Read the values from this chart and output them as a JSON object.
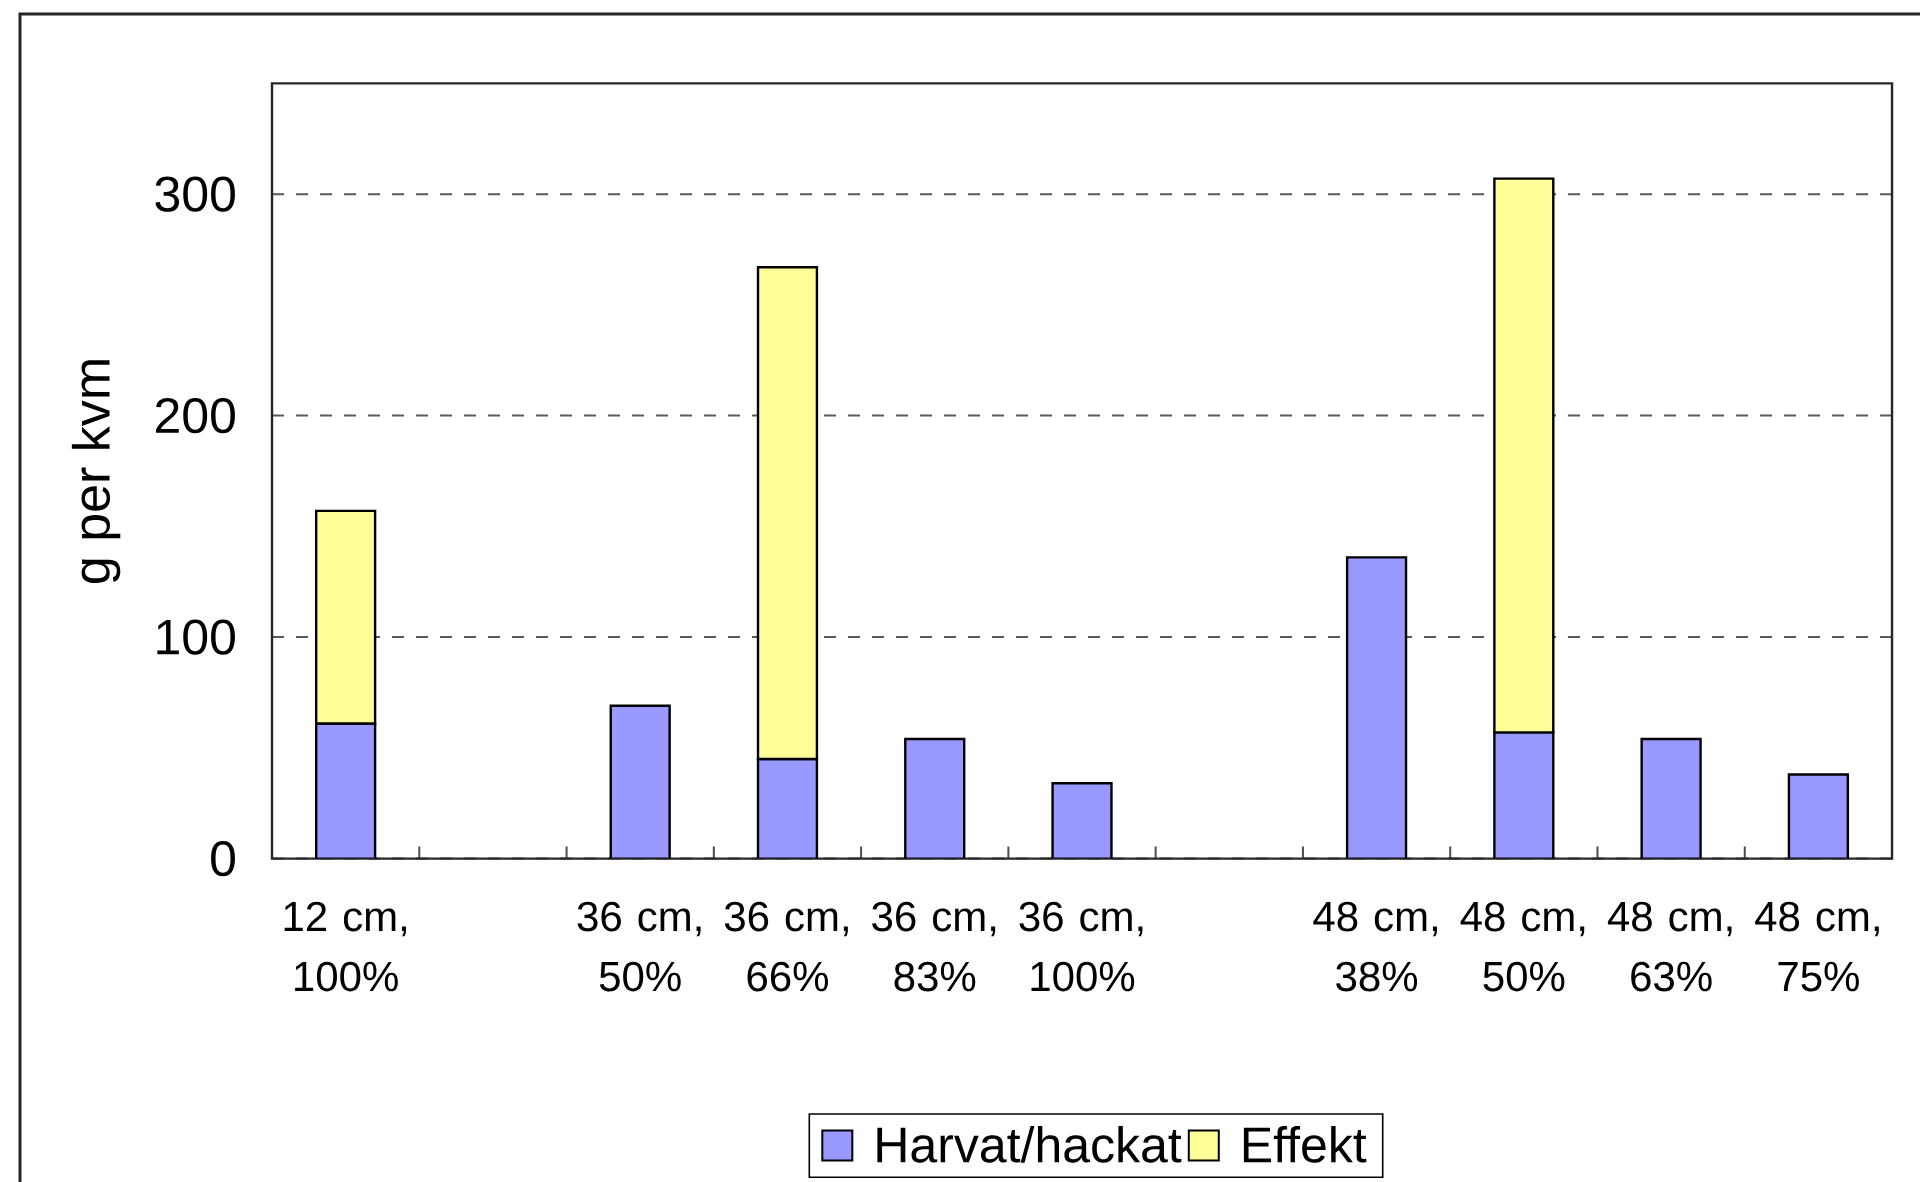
{
  "chart_data": {
    "type": "bar",
    "stacked": true,
    "ylabel": "g per kvm",
    "categories": [
      "12 cm, 100%",
      null,
      "36 cm, 50%",
      "36 cm, 66%",
      "36 cm, 83%",
      "36 cm, 100%",
      null,
      "48 cm, 38%",
      "48 cm, 50%",
      "48 cm, 63%",
      "48 cm, 75%"
    ],
    "series": [
      {
        "name": "Harvat/hackat",
        "color": "#9999ff",
        "values": [
          61,
          null,
          69,
          45,
          54,
          34,
          null,
          136,
          57,
          54,
          38
        ]
      },
      {
        "name": "Effekt",
        "color": "#ffff99",
        "values": [
          96,
          null,
          null,
          222,
          null,
          null,
          null,
          null,
          250,
          null,
          null
        ]
      }
    ],
    "ylim": [
      0,
      350
    ],
    "yticks": [
      0,
      100,
      200,
      300
    ],
    "grid": "y",
    "legend": "bottom"
  }
}
